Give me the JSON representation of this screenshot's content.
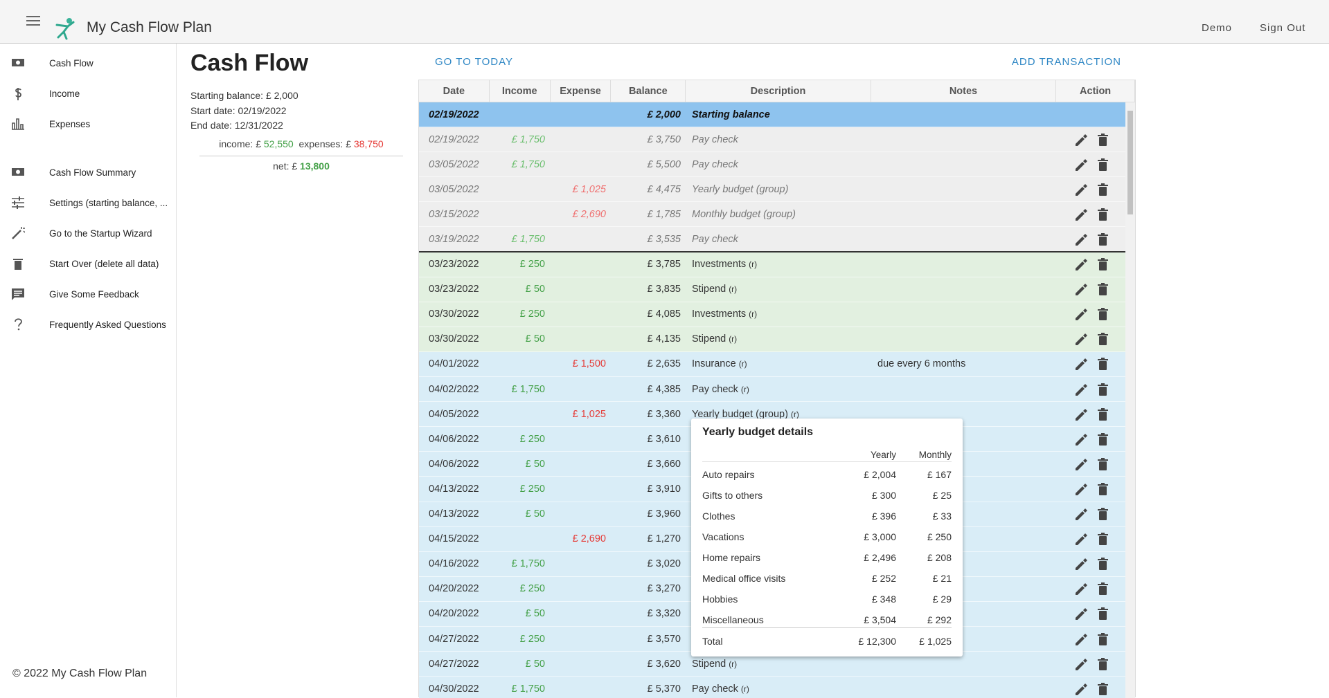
{
  "app": {
    "title": "My Cash Flow Plan",
    "nav": [
      "Demo",
      "Sign Out"
    ]
  },
  "sidebar": {
    "items": [
      {
        "label": "Cash Flow",
        "icon": "cash"
      },
      {
        "label": "Income",
        "icon": "dollar"
      },
      {
        "label": "Expenses",
        "icon": "bars"
      },
      {
        "label": "Cash Flow Summary",
        "icon": "cash",
        "divider_before": true
      },
      {
        "label": "Settings (starting balance, ...",
        "icon": "sliders"
      },
      {
        "label": "Go to the Startup Wizard",
        "icon": "wand"
      },
      {
        "label": "Start Over (delete all data)",
        "icon": "trash"
      },
      {
        "label": "Give Some Feedback",
        "icon": "chat"
      },
      {
        "label": "Frequently Asked Questions",
        "icon": "help"
      }
    ],
    "footer": "© 2022 My Cash Flow Plan"
  },
  "summary": {
    "heading": "Cash Flow",
    "lines": [
      "Starting balance: £ 2,000",
      "Start date: 02/19/2022",
      "End date: 12/31/2022"
    ],
    "income_label": "income: £",
    "income_value": "52,550",
    "expenses_label": "expenses: £",
    "expenses_value": "38,750",
    "net_label": "net: £",
    "net_value": "13,800"
  },
  "buttons": {
    "today": "GO TO TODAY",
    "add": "ADD TRANSACTION"
  },
  "table": {
    "columns": [
      "Date",
      "Income",
      "Expense",
      "Balance",
      "Description",
      "Notes",
      "Action"
    ],
    "rows": [
      {
        "group": "start",
        "date": "02/19/2022",
        "balance": "£ 2,000",
        "description": "Starting balance"
      },
      {
        "group": "past",
        "date": "02/19/2022",
        "income": "£ 1,750",
        "balance": "£ 3,750",
        "description": "Pay check"
      },
      {
        "group": "past",
        "date": "03/05/2022",
        "income": "£ 1,750",
        "balance": "£ 5,500",
        "description": "Pay check"
      },
      {
        "group": "past",
        "date": "03/05/2022",
        "expense": "£ 1,025",
        "balance": "£ 4,475",
        "description": "Yearly budget (group)"
      },
      {
        "group": "past",
        "date": "03/15/2022",
        "expense": "£ 2,690",
        "balance": "£ 1,785",
        "description": "Monthly budget (group)"
      },
      {
        "group": "past",
        "date": "03/19/2022",
        "income": "£ 1,750",
        "balance": "£ 3,535",
        "description": "Pay check"
      },
      {
        "group": "green",
        "date": "03/23/2022",
        "income": "£ 250",
        "balance": "£ 3,785",
        "description": "Investments",
        "flag": "(r)"
      },
      {
        "group": "green",
        "date": "03/23/2022",
        "income": "£ 50",
        "balance": "£ 3,835",
        "description": "Stipend",
        "flag": "(r)"
      },
      {
        "group": "green",
        "date": "03/30/2022",
        "income": "£ 250",
        "balance": "£ 4,085",
        "description": "Investments",
        "flag": "(r)"
      },
      {
        "group": "green",
        "date": "03/30/2022",
        "income": "£ 50",
        "balance": "£ 4,135",
        "description": "Stipend",
        "flag": "(r)"
      },
      {
        "group": "blue",
        "date": "04/01/2022",
        "expense": "£ 1,500",
        "balance": "£ 2,635",
        "description": "Insurance",
        "flag": "(r)",
        "notes": "due every 6 months"
      },
      {
        "group": "blue",
        "date": "04/02/2022",
        "income": "£ 1,750",
        "balance": "£ 4,385",
        "description": "Pay check",
        "flag": "(r)"
      },
      {
        "group": "blue",
        "date": "04/05/2022",
        "expense": "£ 1,025",
        "balance": "£ 3,360",
        "description": "Yearly budget (group)",
        "flag": "(r)"
      },
      {
        "group": "blue",
        "date": "04/06/2022",
        "income": "£ 250",
        "balance": "£ 3,610"
      },
      {
        "group": "blue",
        "date": "04/06/2022",
        "income": "£ 50",
        "balance": "£ 3,660"
      },
      {
        "group": "blue",
        "date": "04/13/2022",
        "income": "£ 250",
        "balance": "£ 3,910"
      },
      {
        "group": "blue",
        "date": "04/13/2022",
        "income": "£ 50",
        "balance": "£ 3,960"
      },
      {
        "group": "blue",
        "date": "04/15/2022",
        "expense": "£ 2,690",
        "balance": "£ 1,270"
      },
      {
        "group": "blue",
        "date": "04/16/2022",
        "income": "£ 1,750",
        "balance": "£ 3,020"
      },
      {
        "group": "blue",
        "date": "04/20/2022",
        "income": "£ 250",
        "balance": "£ 3,270"
      },
      {
        "group": "blue",
        "date": "04/20/2022",
        "income": "£ 50",
        "balance": "£ 3,320"
      },
      {
        "group": "blue",
        "date": "04/27/2022",
        "income": "£ 250",
        "balance": "£ 3,570"
      },
      {
        "group": "blue",
        "date": "04/27/2022",
        "income": "£ 50",
        "balance": "£ 3,620",
        "description": "Stipend",
        "flag": "(r)"
      },
      {
        "group": "blue",
        "date": "04/30/2022",
        "income": "£ 1,750",
        "balance": "£ 5,370",
        "description": "Pay check",
        "flag": "(r)"
      }
    ]
  },
  "popup": {
    "title": "Yearly budget details",
    "columns": [
      "Yearly",
      "Monthly"
    ],
    "rows": [
      [
        "Auto repairs",
        "£ 2,004",
        "£ 167"
      ],
      [
        "Gifts to others",
        "£ 300",
        "£ 25"
      ],
      [
        "Clothes",
        "£ 396",
        "£ 33"
      ],
      [
        "Vacations",
        "£ 3,000",
        "£ 250"
      ],
      [
        "Home repairs",
        "£ 2,496",
        "£ 208"
      ],
      [
        "Medical office visits",
        "£ 252",
        "£ 21"
      ],
      [
        "Hobbies",
        "£ 348",
        "£ 29"
      ],
      [
        "Miscellaneous",
        "£ 3,504",
        "£ 292"
      ]
    ],
    "total": [
      "Total",
      "£ 12,300",
      "£ 1,025"
    ]
  }
}
